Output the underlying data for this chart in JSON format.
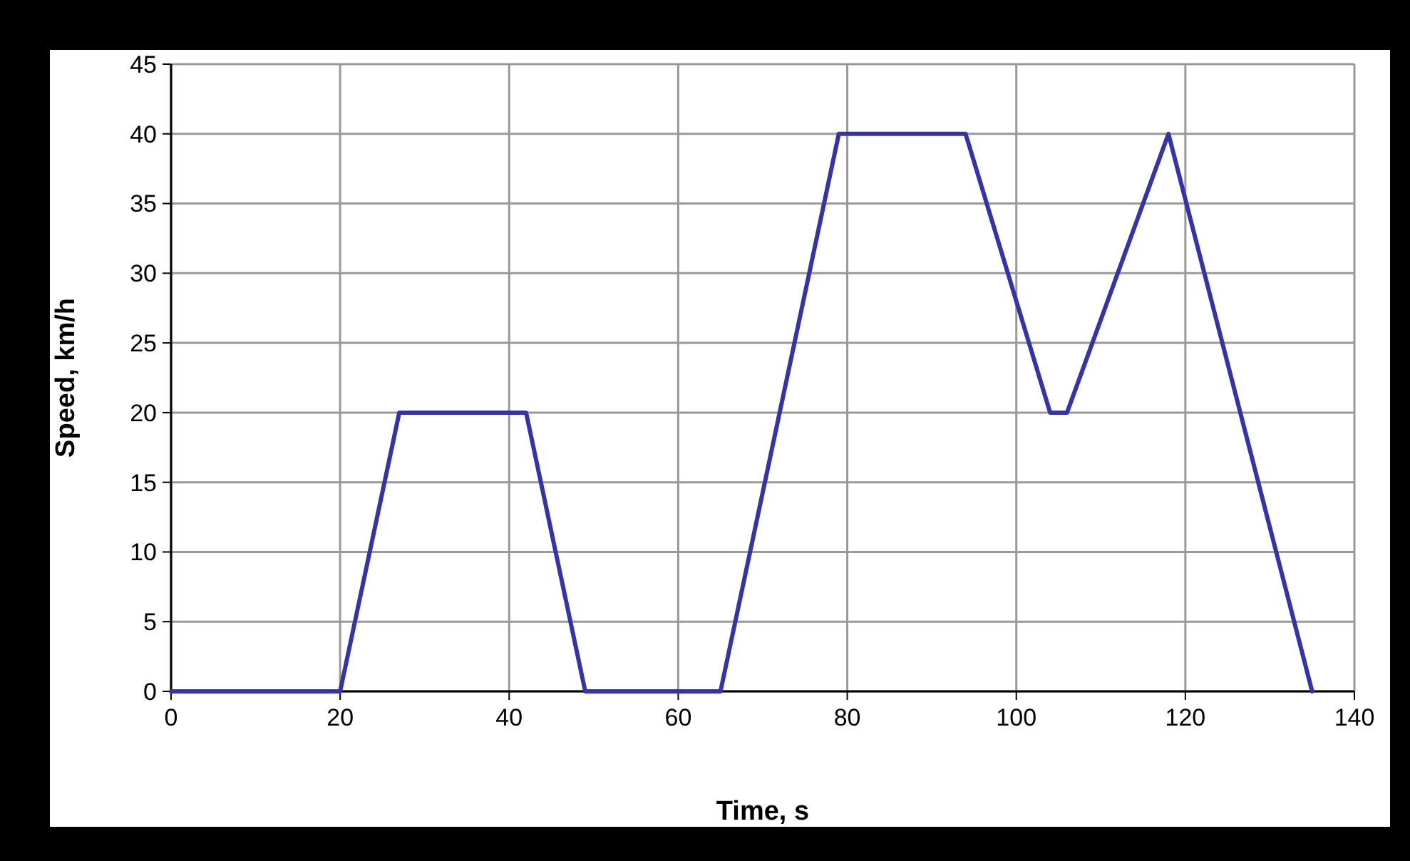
{
  "chart_data": {
    "type": "line",
    "xlabel": "Time, s",
    "ylabel": "Speed, km/h",
    "x": [
      0,
      20,
      27,
      42,
      49,
      65,
      79,
      94,
      104,
      106,
      118,
      135
    ],
    "series": [
      {
        "color": "#3333aa",
        "values": [
          0,
          0,
          20,
          20,
          0,
          0,
          40,
          40,
          20,
          20,
          40,
          0
        ]
      }
    ],
    "xlim": [
      0,
      140
    ],
    "xticks": [
      0,
      20,
      40,
      60,
      80,
      100,
      120,
      140
    ],
    "ylim": [
      0,
      45
    ],
    "yticks": [
      0,
      5,
      10,
      15,
      20,
      25,
      30,
      35,
      40,
      45
    ],
    "grid": true,
    "line_style": "solid",
    "marker": "none"
  }
}
